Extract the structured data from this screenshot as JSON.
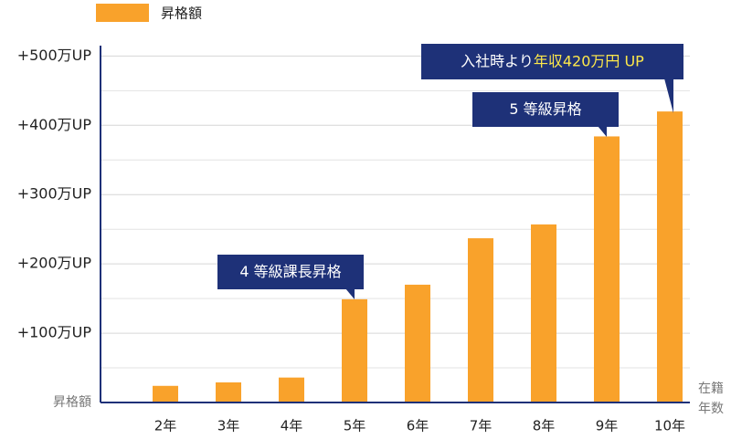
{
  "chart_data": {
    "type": "bar",
    "legend": "昇格額",
    "y_label": "昇格額",
    "x_label": [
      "在籍",
      "年数"
    ],
    "categories": [
      "2年",
      "3年",
      "4年",
      "5年",
      "6年",
      "7年",
      "8年",
      "9年",
      "10年"
    ],
    "values": [
      24,
      29,
      36,
      149,
      170,
      237,
      257,
      384,
      420
    ],
    "color": "#f9a22b",
    "ylim": [
      0,
      515
    ],
    "yticks": [
      {
        "value": 100,
        "label": "+100万UP"
      },
      {
        "value": 200,
        "label": "+200万UP"
      },
      {
        "value": 300,
        "label": "+300万UP"
      },
      {
        "value": 400,
        "label": "+400万UP"
      },
      {
        "value": 500,
        "label": "+500万UP"
      }
    ],
    "minor_yticks": [
      50,
      150,
      250,
      350,
      450
    ],
    "grid": true,
    "annotations": [
      {
        "text": "4 等級課長昇格"
      },
      {
        "text": "5 等級昇格"
      },
      {
        "text": "入社時より",
        "highlight": "年収420万円 UP"
      }
    ],
    "annotation_color": "#1e3178",
    "highlight_color": "#ffe94a"
  }
}
